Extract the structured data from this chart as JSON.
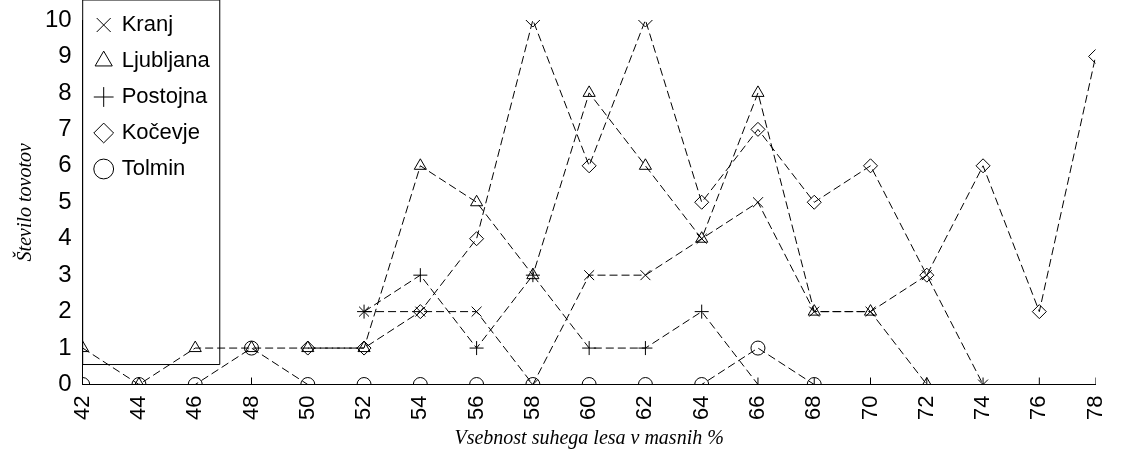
{
  "chart_data": {
    "type": "line",
    "xlabel": "Vsebnost suhega lesa v masnih %",
    "ylabel": "Število tovotov",
    "x": [
      42,
      44,
      46,
      48,
      50,
      52,
      54,
      56,
      58,
      60,
      62,
      64,
      66,
      68,
      70,
      72,
      74,
      76,
      78
    ],
    "xlim": [
      42,
      78
    ],
    "xticks": [
      42,
      44,
      46,
      48,
      50,
      52,
      54,
      56,
      58,
      60,
      62,
      64,
      66,
      68,
      70,
      72,
      74,
      76,
      78
    ],
    "ylim": [
      0,
      10
    ],
    "yticks": [
      0,
      1,
      2,
      3,
      4,
      5,
      6,
      7,
      8,
      9,
      10
    ],
    "grid": false,
    "legend": "top left",
    "line_style": "dashed",
    "series": [
      {
        "name": "Kranj",
        "color": "#000000",
        "marker": "cross",
        "values": [
          null,
          null,
          null,
          null,
          null,
          2,
          2,
          2,
          0,
          3,
          3,
          4,
          5,
          2,
          2,
          3,
          0,
          null,
          null
        ]
      },
      {
        "name": "Ljubljana",
        "color": "#000000",
        "marker": "triangle",
        "values": [
          1,
          0,
          1,
          1,
          1,
          1,
          6,
          5,
          3,
          8,
          6,
          4,
          8,
          2,
          2,
          0,
          null,
          null,
          null
        ]
      },
      {
        "name": "Postojna",
        "color": "#000000",
        "marker": "plus",
        "values": [
          null,
          null,
          null,
          0,
          null,
          2,
          3,
          1,
          3,
          1,
          1,
          2,
          0,
          0,
          0,
          0,
          0,
          0,
          0
        ]
      },
      {
        "name": "Kočevje",
        "color": "#000000",
        "marker": "diamond",
        "values": [
          null,
          null,
          null,
          null,
          1,
          1,
          2,
          4,
          10,
          6,
          10,
          5,
          7,
          5,
          6,
          3,
          6,
          2,
          9
        ]
      },
      {
        "name": "Tolmin",
        "color": "#000000",
        "marker": "circle",
        "values": [
          0,
          0,
          0,
          1,
          0,
          0,
          0,
          0,
          0,
          0,
          0,
          0,
          1,
          0,
          null,
          null,
          null,
          null,
          null
        ]
      }
    ]
  }
}
